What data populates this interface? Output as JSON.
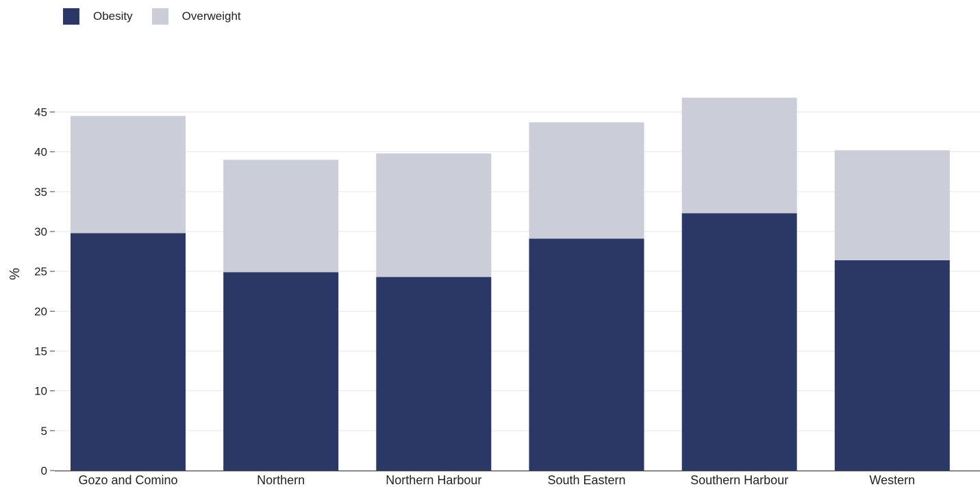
{
  "colors": {
    "obesity": "#2b3764",
    "overweight": "#cbcdd8",
    "grid": "#e6e6e6",
    "axis": "#444444"
  },
  "legend": {
    "items": [
      "Obesity",
      "Overweight"
    ]
  },
  "chart_data": {
    "type": "bar",
    "stacked": true,
    "categories": [
      "Gozo and Comino",
      "Northern",
      "Northern Harbour",
      "South Eastern",
      "Southern Harbour",
      "Western"
    ],
    "series": [
      {
        "name": "Obesity",
        "values": [
          29.8,
          24.9,
          24.3,
          29.1,
          32.3,
          26.4
        ]
      },
      {
        "name": "Overweight",
        "values": [
          14.7,
          14.1,
          15.5,
          14.6,
          14.5,
          13.8
        ]
      }
    ],
    "ylabel": "%",
    "ylim": [
      0,
      45
    ],
    "yticks": [
      0,
      5,
      10,
      15,
      20,
      25,
      30,
      35,
      40,
      45
    ],
    "grid": true,
    "legend_position": "top-left"
  }
}
